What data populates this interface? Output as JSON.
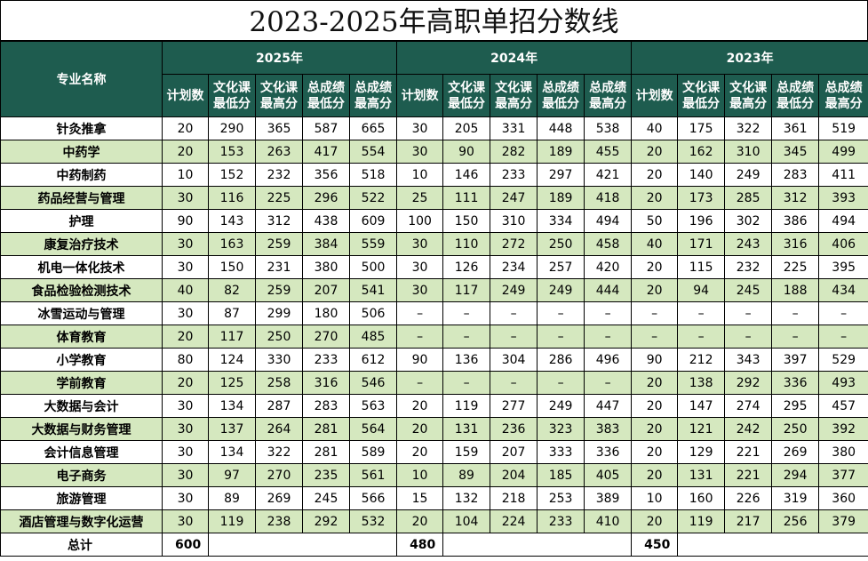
{
  "title": "2023-2025年高职单招分数线",
  "header": {
    "major_col": "专业名称",
    "years": [
      "2025年",
      "2024年",
      "2023年"
    ],
    "sub_cols": [
      "计划数",
      "文化课\n最低分",
      "文化课\n最高分",
      "总成绩\n最低分",
      "总成绩\n最高分"
    ]
  },
  "rows": [
    {
      "name": "针灸推拿",
      "v": [
        "20",
        "290",
        "365",
        "587",
        "665",
        "30",
        "205",
        "331",
        "448",
        "538",
        "40",
        "175",
        "322",
        "361",
        "519"
      ]
    },
    {
      "name": "中药学",
      "v": [
        "20",
        "153",
        "263",
        "417",
        "554",
        "30",
        "90",
        "282",
        "189",
        "455",
        "20",
        "162",
        "310",
        "345",
        "499"
      ]
    },
    {
      "name": "中药制药",
      "v": [
        "10",
        "152",
        "232",
        "356",
        "518",
        "10",
        "146",
        "233",
        "297",
        "421",
        "20",
        "140",
        "249",
        "283",
        "411"
      ]
    },
    {
      "name": "药品经营与管理",
      "v": [
        "30",
        "116",
        "225",
        "296",
        "522",
        "25",
        "111",
        "247",
        "189",
        "418",
        "20",
        "173",
        "285",
        "312",
        "393"
      ]
    },
    {
      "name": "护理",
      "v": [
        "90",
        "143",
        "312",
        "438",
        "609",
        "100",
        "150",
        "310",
        "334",
        "494",
        "50",
        "196",
        "302",
        "386",
        "494"
      ]
    },
    {
      "name": "康复治疗技术",
      "v": [
        "30",
        "163",
        "259",
        "384",
        "559",
        "30",
        "110",
        "272",
        "250",
        "458",
        "40",
        "171",
        "243",
        "316",
        "406"
      ]
    },
    {
      "name": "机电一体化技术",
      "v": [
        "30",
        "150",
        "231",
        "380",
        "500",
        "30",
        "126",
        "234",
        "257",
        "420",
        "20",
        "115",
        "232",
        "225",
        "395"
      ]
    },
    {
      "name": "食品检验检测技术",
      "v": [
        "40",
        "82",
        "259",
        "207",
        "541",
        "30",
        "117",
        "249",
        "249",
        "444",
        "20",
        "94",
        "245",
        "188",
        "434"
      ]
    },
    {
      "name": "冰雪运动与管理",
      "v": [
        "30",
        "87",
        "299",
        "180",
        "506",
        "–",
        "–",
        "–",
        "–",
        "–",
        "–",
        "–",
        "–",
        "–",
        "–"
      ]
    },
    {
      "name": "体育教育",
      "v": [
        "20",
        "117",
        "250",
        "270",
        "485",
        "–",
        "–",
        "–",
        "–",
        "–",
        "–",
        "–",
        "–",
        "–",
        "–"
      ]
    },
    {
      "name": "小学教育",
      "v": [
        "80",
        "124",
        "330",
        "233",
        "612",
        "90",
        "136",
        "304",
        "286",
        "496",
        "90",
        "212",
        "343",
        "397",
        "529"
      ]
    },
    {
      "name": "学前教育",
      "v": [
        "20",
        "125",
        "258",
        "316",
        "546",
        "–",
        "–",
        "–",
        "–",
        "–",
        "20",
        "138",
        "292",
        "336",
        "493"
      ]
    },
    {
      "name": "大数据与会计",
      "v": [
        "30",
        "134",
        "287",
        "283",
        "563",
        "20",
        "119",
        "277",
        "249",
        "447",
        "20",
        "147",
        "274",
        "295",
        "457"
      ]
    },
    {
      "name": "大数据与财务管理",
      "v": [
        "30",
        "137",
        "264",
        "281",
        "564",
        "20",
        "131",
        "236",
        "323",
        "383",
        "20",
        "121",
        "242",
        "250",
        "392"
      ]
    },
    {
      "name": "会计信息管理",
      "v": [
        "30",
        "134",
        "322",
        "281",
        "589",
        "20",
        "159",
        "207",
        "333",
        "336",
        "20",
        "129",
        "221",
        "269",
        "380"
      ]
    },
    {
      "name": "电子商务",
      "v": [
        "30",
        "97",
        "270",
        "235",
        "561",
        "10",
        "89",
        "204",
        "185",
        "405",
        "20",
        "131",
        "221",
        "294",
        "377"
      ]
    },
    {
      "name": "旅游管理",
      "v": [
        "30",
        "89",
        "269",
        "245",
        "566",
        "15",
        "132",
        "218",
        "253",
        "389",
        "10",
        "160",
        "226",
        "319",
        "360"
      ]
    },
    {
      "name": "酒店管理与数字化运营",
      "v": [
        "30",
        "119",
        "238",
        "292",
        "532",
        "20",
        "104",
        "224",
        "233",
        "410",
        "20",
        "119",
        "217",
        "256",
        "379"
      ]
    }
  ],
  "total": {
    "label": "总计",
    "values": [
      "600",
      "480",
      "450"
    ]
  }
}
